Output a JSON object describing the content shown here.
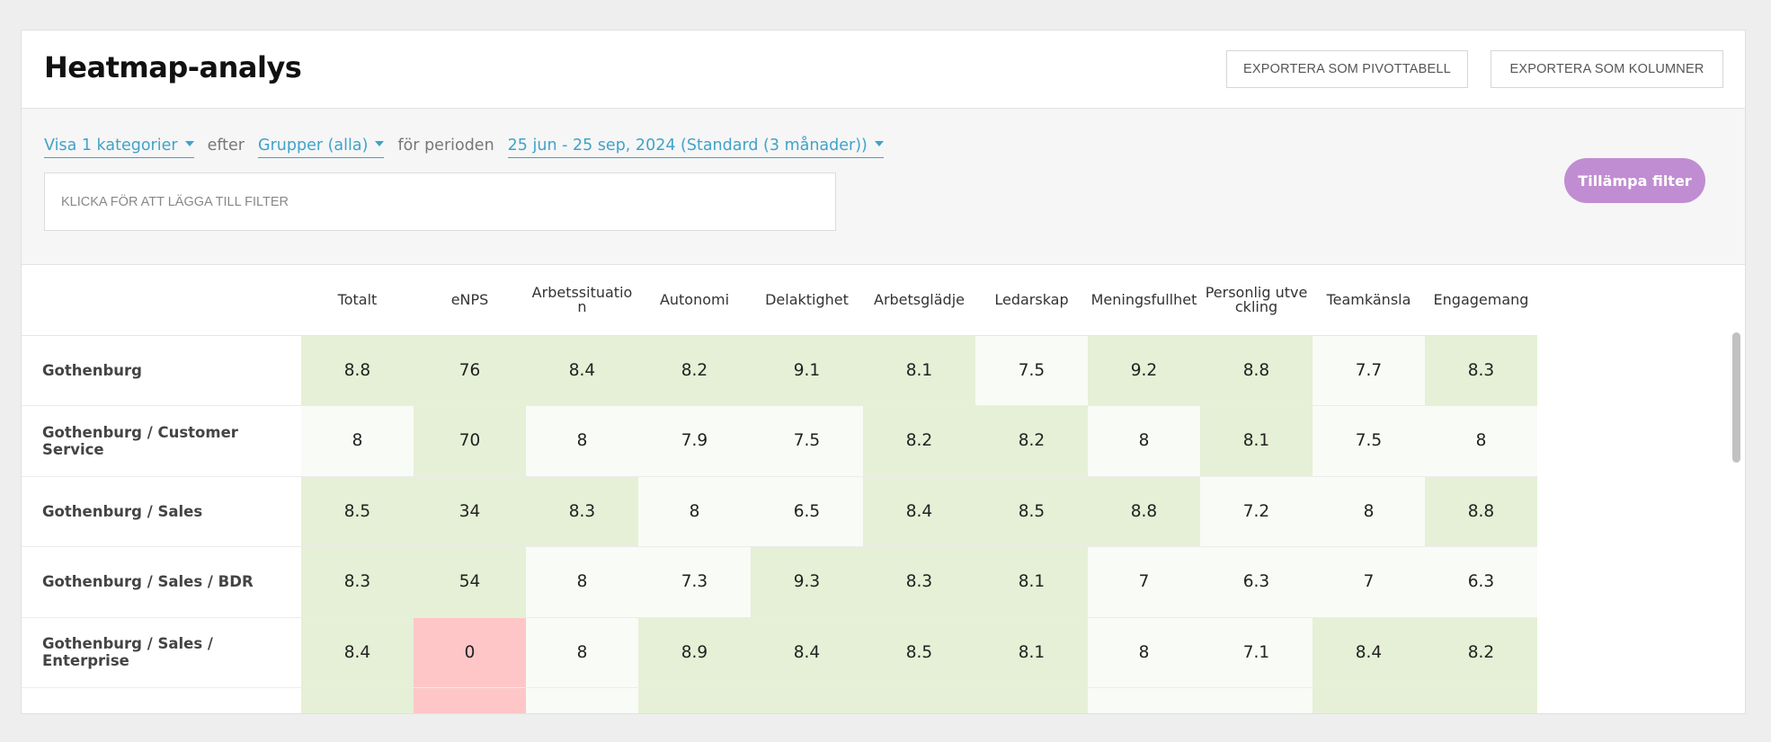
{
  "header": {
    "title": "Heatmap-analys",
    "export_pivot_label": "Exportera som pivottabell",
    "export_columns_label": "Exportera som kolumner"
  },
  "filters": {
    "categories_label": "Visa 1 kategorier",
    "by_label": "efter",
    "groups_label": "Grupper (alla)",
    "period_prefix": "för perioden",
    "period_label": "25 jun - 25 sep, 2024 (Standard (3 månader))",
    "add_filter_placeholder": "Klicka för att lägga till filter",
    "apply_label": "Tillämpa filter"
  },
  "colors": {
    "link": "#3fa3c9",
    "apply_button": "#c18dd2",
    "cell_high": "#e5f0d6",
    "cell_mid": "#f9fbf6",
    "cell_low": "#ffc6c8"
  },
  "table": {
    "columns": [
      "Totalt",
      "eNPS",
      "Arbetssituation",
      "Autonomi",
      "Delaktighet",
      "Arbetsglädje",
      "Ledarskap",
      "Meningsfullhet",
      "Personlig utveckling",
      "Teamkänsla",
      "Engagemang"
    ],
    "rows": [
      {
        "label": "Gothenburg",
        "values": [
          "8.8",
          "76",
          "8.4",
          "8.2",
          "9.1",
          "8.1",
          "7.5",
          "9.2",
          "8.8",
          "7.7",
          "8.3"
        ],
        "levels": [
          "high",
          "high",
          "high",
          "high",
          "high",
          "high",
          "mid",
          "high",
          "high",
          "mid",
          "high"
        ]
      },
      {
        "label": "Gothenburg / Customer Service",
        "values": [
          "8",
          "70",
          "8",
          "7.9",
          "7.5",
          "8.2",
          "8.2",
          "8",
          "8.1",
          "7.5",
          "8"
        ],
        "levels": [
          "mid",
          "high",
          "mid",
          "mid",
          "mid",
          "high",
          "high",
          "mid",
          "high",
          "mid",
          "mid"
        ]
      },
      {
        "label": "Gothenburg / Sales",
        "values": [
          "8.5",
          "34",
          "8.3",
          "8",
          "6.5",
          "8.4",
          "8.5",
          "8.8",
          "7.2",
          "8",
          "8.8"
        ],
        "levels": [
          "high",
          "high",
          "high",
          "mid",
          "mid",
          "high",
          "high",
          "high",
          "mid",
          "mid",
          "high"
        ]
      },
      {
        "label": "Gothenburg / Sales / BDR",
        "values": [
          "8.3",
          "54",
          "8",
          "7.3",
          "9.3",
          "8.3",
          "8.1",
          "7",
          "6.3",
          "7",
          "6.3"
        ],
        "levels": [
          "high",
          "high",
          "mid",
          "mid",
          "high",
          "high",
          "high",
          "mid",
          "mid",
          "mid",
          "mid"
        ]
      },
      {
        "label": "Gothenburg / Sales / Enterprise",
        "values": [
          "8.4",
          "0",
          "8",
          "8.9",
          "8.4",
          "8.5",
          "8.1",
          "8",
          "7.1",
          "8.4",
          "8.2"
        ],
        "levels": [
          "high",
          "low",
          "mid",
          "high",
          "high",
          "high",
          "high",
          "mid",
          "mid",
          "high",
          "high"
        ]
      },
      {
        "label": "",
        "values": [
          "",
          "",
          "",
          "",
          "",
          "",
          "",
          "",
          "",
          "",
          ""
        ],
        "levels": [
          "high",
          "low",
          "mid",
          "high",
          "high",
          "high",
          "high",
          "mid",
          "mid",
          "high",
          "high"
        ]
      }
    ]
  }
}
